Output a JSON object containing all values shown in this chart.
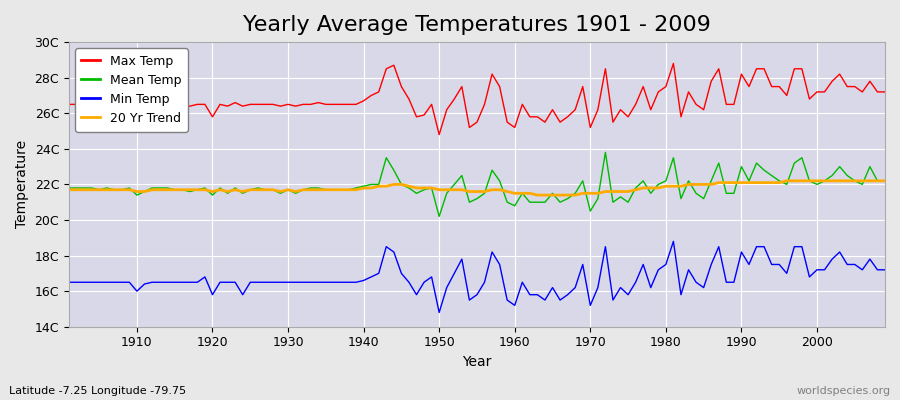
{
  "title": "Yearly Average Temperatures 1901 - 2009",
  "xlabel": "Year",
  "ylabel": "Temperature",
  "lat_lon_label": "Latitude -7.25 Longitude -79.75",
  "watermark": "worldspecies.org",
  "years": [
    1901,
    1902,
    1903,
    1904,
    1905,
    1906,
    1907,
    1908,
    1909,
    1910,
    1911,
    1912,
    1913,
    1914,
    1915,
    1916,
    1917,
    1918,
    1919,
    1920,
    1921,
    1922,
    1923,
    1924,
    1925,
    1926,
    1927,
    1928,
    1929,
    1930,
    1931,
    1932,
    1933,
    1934,
    1935,
    1936,
    1937,
    1938,
    1939,
    1940,
    1941,
    1942,
    1943,
    1944,
    1945,
    1946,
    1947,
    1948,
    1949,
    1950,
    1951,
    1952,
    1953,
    1954,
    1955,
    1956,
    1957,
    1958,
    1959,
    1960,
    1961,
    1962,
    1963,
    1964,
    1965,
    1966,
    1967,
    1968,
    1969,
    1970,
    1971,
    1972,
    1973,
    1974,
    1975,
    1976,
    1977,
    1978,
    1979,
    1980,
    1981,
    1982,
    1983,
    1984,
    1985,
    1986,
    1987,
    1988,
    1989,
    1990,
    1991,
    1992,
    1993,
    1994,
    1995,
    1996,
    1997,
    1998,
    1999,
    2000,
    2001,
    2002,
    2003,
    2004,
    2005,
    2006,
    2007,
    2008,
    2009
  ],
  "max_temp": [
    26.5,
    26.5,
    26.5,
    26.4,
    26.4,
    26.5,
    26.4,
    26.5,
    26.4,
    25.9,
    26.3,
    26.5,
    26.5,
    26.6,
    26.4,
    26.3,
    26.4,
    26.5,
    26.5,
    25.8,
    26.5,
    26.4,
    26.6,
    26.4,
    26.5,
    26.5,
    26.5,
    26.5,
    26.4,
    26.5,
    26.4,
    26.5,
    26.5,
    26.6,
    26.5,
    26.5,
    26.5,
    26.5,
    26.5,
    26.7,
    27.0,
    27.2,
    28.5,
    28.7,
    27.5,
    26.8,
    25.8,
    25.9,
    26.5,
    24.8,
    26.2,
    26.8,
    27.5,
    25.2,
    25.5,
    26.5,
    28.2,
    27.5,
    25.5,
    25.2,
    26.5,
    25.8,
    25.8,
    25.5,
    26.2,
    25.5,
    25.8,
    26.2,
    27.5,
    25.2,
    26.2,
    28.5,
    25.5,
    26.2,
    25.8,
    26.5,
    27.5,
    26.2,
    27.2,
    27.5,
    28.8,
    25.8,
    27.2,
    26.5,
    26.2,
    27.8,
    28.5,
    26.5,
    26.5,
    28.2,
    27.5,
    28.5,
    28.5,
    27.5,
    27.5,
    27.0,
    28.5,
    28.5,
    26.8,
    27.2,
    27.2,
    27.8,
    28.2,
    27.5,
    27.5,
    27.2,
    27.8,
    27.2,
    27.2
  ],
  "mean_temp": [
    21.8,
    21.8,
    21.8,
    21.8,
    21.7,
    21.8,
    21.7,
    21.7,
    21.8,
    21.4,
    21.6,
    21.8,
    21.8,
    21.8,
    21.7,
    21.7,
    21.6,
    21.7,
    21.8,
    21.4,
    21.8,
    21.5,
    21.8,
    21.5,
    21.7,
    21.8,
    21.7,
    21.7,
    21.5,
    21.7,
    21.5,
    21.7,
    21.8,
    21.8,
    21.7,
    21.7,
    21.7,
    21.7,
    21.8,
    21.9,
    22.0,
    22.0,
    23.5,
    22.8,
    22.0,
    21.8,
    21.5,
    21.7,
    21.8,
    20.2,
    21.5,
    22.0,
    22.5,
    21.0,
    21.2,
    21.5,
    22.8,
    22.2,
    21.0,
    20.8,
    21.5,
    21.0,
    21.0,
    21.0,
    21.5,
    21.0,
    21.2,
    21.5,
    22.2,
    20.5,
    21.2,
    23.8,
    21.0,
    21.3,
    21.0,
    21.8,
    22.2,
    21.5,
    22.0,
    22.2,
    23.5,
    21.2,
    22.2,
    21.5,
    21.2,
    22.2,
    23.2,
    21.5,
    21.5,
    23.0,
    22.2,
    23.2,
    22.8,
    22.5,
    22.2,
    22.0,
    23.2,
    23.5,
    22.2,
    22.0,
    22.2,
    22.5,
    23.0,
    22.5,
    22.2,
    22.0,
    23.0,
    22.2,
    22.2
  ],
  "min_temp": [
    16.5,
    16.5,
    16.5,
    16.5,
    16.5,
    16.5,
    16.5,
    16.5,
    16.5,
    16.0,
    16.4,
    16.5,
    16.5,
    16.5,
    16.5,
    16.5,
    16.5,
    16.5,
    16.8,
    15.8,
    16.5,
    16.5,
    16.5,
    15.8,
    16.5,
    16.5,
    16.5,
    16.5,
    16.5,
    16.5,
    16.5,
    16.5,
    16.5,
    16.5,
    16.5,
    16.5,
    16.5,
    16.5,
    16.5,
    16.6,
    16.8,
    17.0,
    18.5,
    18.2,
    17.0,
    16.5,
    15.8,
    16.5,
    16.8,
    14.8,
    16.2,
    17.0,
    17.8,
    15.5,
    15.8,
    16.5,
    18.2,
    17.5,
    15.5,
    15.2,
    16.5,
    15.8,
    15.8,
    15.5,
    16.2,
    15.5,
    15.8,
    16.2,
    17.5,
    15.2,
    16.2,
    18.5,
    15.5,
    16.2,
    15.8,
    16.5,
    17.5,
    16.2,
    17.2,
    17.5,
    18.8,
    15.8,
    17.2,
    16.5,
    16.2,
    17.5,
    18.5,
    16.5,
    16.5,
    18.2,
    17.5,
    18.5,
    18.5,
    17.5,
    17.5,
    17.0,
    18.5,
    18.5,
    16.8,
    17.2,
    17.2,
    17.8,
    18.2,
    17.5,
    17.5,
    17.2,
    17.8,
    17.2,
    17.2
  ],
  "trend": [
    21.7,
    21.7,
    21.7,
    21.7,
    21.7,
    21.7,
    21.7,
    21.7,
    21.7,
    21.6,
    21.6,
    21.7,
    21.7,
    21.7,
    21.7,
    21.7,
    21.7,
    21.7,
    21.7,
    21.6,
    21.7,
    21.6,
    21.7,
    21.6,
    21.7,
    21.7,
    21.7,
    21.7,
    21.6,
    21.7,
    21.6,
    21.7,
    21.7,
    21.7,
    21.7,
    21.7,
    21.7,
    21.7,
    21.7,
    21.8,
    21.8,
    21.9,
    21.9,
    22.0,
    22.0,
    21.9,
    21.8,
    21.8,
    21.8,
    21.7,
    21.7,
    21.7,
    21.7,
    21.6,
    21.6,
    21.6,
    21.7,
    21.7,
    21.6,
    21.5,
    21.5,
    21.5,
    21.4,
    21.4,
    21.4,
    21.4,
    21.4,
    21.4,
    21.5,
    21.5,
    21.5,
    21.6,
    21.6,
    21.6,
    21.6,
    21.7,
    21.8,
    21.8,
    21.8,
    21.9,
    21.9,
    21.9,
    22.0,
    22.0,
    22.0,
    22.0,
    22.1,
    22.1,
    22.1,
    22.1,
    22.1,
    22.1,
    22.1,
    22.1,
    22.1,
    22.2,
    22.2,
    22.2,
    22.2,
    22.2,
    22.2,
    22.2,
    22.2,
    22.2,
    22.2,
    22.2,
    22.2,
    22.2,
    22.2
  ],
  "max_color": "#ff0000",
  "mean_color": "#00bb00",
  "min_color": "#0000ff",
  "trend_color": "#ffaa00",
  "bg_color": "#e8e8e8",
  "plot_bg_color": "#d8d8e8",
  "grid_color": "#ffffff",
  "ylim": [
    14,
    30
  ],
  "yticks": [
    14,
    16,
    18,
    20,
    22,
    24,
    26,
    28,
    30
  ],
  "ytick_labels": [
    "14C",
    "16C",
    "18C",
    "20C",
    "22C",
    "24C",
    "26C",
    "28C",
    "30C"
  ],
  "xlim": [
    1901,
    2009
  ],
  "xticks": [
    1910,
    1920,
    1930,
    1940,
    1950,
    1960,
    1970,
    1980,
    1990,
    2000
  ],
  "title_fontsize": 16,
  "axis_label_fontsize": 10,
  "tick_fontsize": 9,
  "legend_fontsize": 9,
  "line_width": 1.0
}
